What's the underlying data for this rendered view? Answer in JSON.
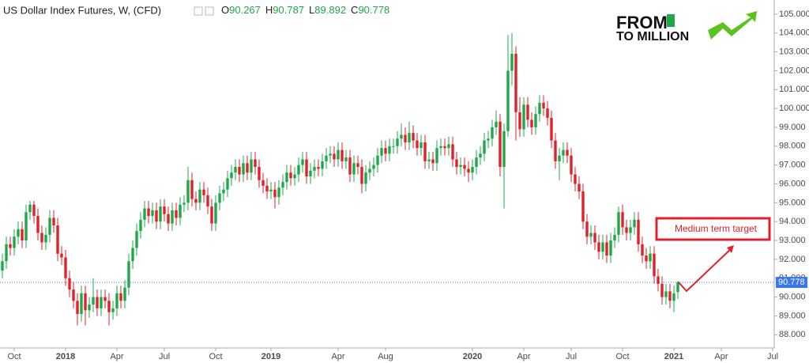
{
  "chart_data": {
    "type": "candlestick",
    "title": "US Dollar Index Futures, W, (CFD)",
    "ohlc_labels": [
      "O",
      "H",
      "L",
      "C"
    ],
    "annotation": "Medium term target",
    "logo_text": [
      "FROM",
      "TO MILLION"
    ],
    "up_color": "#1fa84a",
    "down_color": "#e0212b",
    "price_line_color": "#3a78e8",
    "ylim": [
      87.3,
      105.75
    ],
    "yticks": [
      {
        "value": 88,
        "label": "88.000"
      },
      {
        "value": 89,
        "label": "89.000"
      },
      {
        "value": 90,
        "label": "90.000"
      },
      {
        "value": 91,
        "label": "91.000"
      },
      {
        "value": 92,
        "label": "92.000"
      },
      {
        "value": 93,
        "label": "93.000"
      },
      {
        "value": 94,
        "label": "94.000"
      },
      {
        "value": 95,
        "label": "95.000"
      },
      {
        "value": 96,
        "label": "96.000"
      },
      {
        "value": 97,
        "label": "97.000"
      },
      {
        "value": 98,
        "label": "98.000"
      },
      {
        "value": 99,
        "label": "99.000"
      },
      {
        "value": 100,
        "label": "100.000"
      },
      {
        "value": 101,
        "label": "101.000"
      },
      {
        "value": 102,
        "label": "102.000"
      },
      {
        "value": 103,
        "label": "103.000"
      },
      {
        "value": 104,
        "label": "104.000"
      },
      {
        "value": 105,
        "label": "105.000"
      }
    ],
    "categories": [
      null,
      null,
      null,
      "Oct",
      null,
      null,
      null,
      null,
      null,
      null,
      null,
      null,
      null,
      null,
      null,
      null,
      "2018",
      null,
      null,
      null,
      null,
      null,
      null,
      null,
      null,
      null,
      null,
      null,
      null,
      "Apr",
      null,
      null,
      null,
      null,
      null,
      null,
      null,
      null,
      null,
      null,
      null,
      "Jul",
      null,
      null,
      null,
      null,
      null,
      null,
      null,
      null,
      null,
      null,
      null,
      null,
      "Oct",
      null,
      null,
      null,
      null,
      null,
      null,
      null,
      null,
      null,
      null,
      null,
      null,
      null,
      "2019",
      null,
      null,
      null,
      null,
      null,
      null,
      null,
      null,
      null,
      null,
      null,
      null,
      null,
      null,
      null,
      null,
      "Apr",
      null,
      null,
      null,
      null,
      null,
      null,
      null,
      null,
      null,
      null,
      null,
      "Aug",
      null,
      null,
      null,
      null,
      null,
      null,
      null,
      null,
      null,
      null,
      null,
      null,
      null,
      null,
      null,
      null,
      null,
      null,
      null,
      null,
      null,
      "2020",
      null,
      null,
      null,
      null,
      null,
      null,
      null,
      null,
      null,
      null,
      null,
      null,
      "Apr",
      null,
      null,
      null,
      null,
      null,
      null,
      null,
      null,
      null,
      null,
      null,
      "Jul",
      null,
      null,
      null,
      null,
      null,
      null,
      null,
      null,
      null,
      null,
      null,
      null,
      "Oct",
      null,
      null,
      null,
      null,
      null,
      null,
      null,
      null,
      null,
      null,
      null,
      null,
      "2021",
      null,
      null,
      null,
      null,
      null,
      null,
      null,
      null,
      null,
      null,
      null,
      "Apr",
      null,
      null,
      null,
      null,
      null,
      null,
      null,
      null,
      null,
      null,
      null,
      null,
      "Jul"
    ],
    "open": [
      91.4,
      91.9,
      92.8,
      92.6,
      93.2,
      93.6,
      93.0,
      94.5,
      94.9,
      94.3,
      93.4,
      92.9,
      93.3,
      94.2,
      93.8,
      92.3,
      92.1,
      91.0,
      90.4,
      89.8,
      89.1,
      90.2,
      89.3,
      89.6,
      90.0,
      89.4,
      90.0,
      89.8,
      89.2,
      89.4,
      90.2,
      89.8,
      90.5,
      91.9,
      92.6,
      93.5,
      94.1,
      94.7,
      94.3,
      94.6,
      94.0,
      94.8,
      94.4,
      93.9,
      94.6,
      94.2,
      94.9,
      95.0,
      96.2,
      95.2,
      95.0,
      95.7,
      95.4,
      94.8,
      93.9,
      95.0,
      95.5,
      95.7,
      96.3,
      96.6,
      96.9,
      96.5,
      97.1,
      96.6,
      97.3,
      96.9,
      96.2,
      95.9,
      95.6,
      95.7,
      95.3,
      95.8,
      96.1,
      96.6,
      96.3,
      96.5,
      97.0,
      97.3,
      96.4,
      96.7,
      96.9,
      96.8,
      97.2,
      97.5,
      97.6,
      97.3,
      97.8,
      97.2,
      97.4,
      96.5,
      97.1,
      96.9,
      96.0,
      96.6,
      96.8,
      97.0,
      97.5,
      97.9,
      97.6,
      98.0,
      98.0,
      98.4,
      98.6,
      98.2,
      98.7,
      98.3,
      97.9,
      98.2,
      97.2,
      97.3,
      97.1,
      97.9,
      98.0,
      97.9,
      98.1,
      97.3,
      96.9,
      97.0,
      96.8,
      96.6,
      96.9,
      97.4,
      97.6,
      98.3,
      98.4,
      99.0,
      99.3,
      96.9,
      98.8,
      102.0,
      102.9,
      99.8,
      98.9,
      100.2,
      99.4,
      99.0,
      99.7,
      100.3,
      100.0,
      99.5,
      98.3,
      97.2,
      97.5,
      97.8,
      97.5,
      96.5,
      96.0,
      95.6,
      94.0,
      93.2,
      93.4,
      92.9,
      92.4,
      92.9,
      92.2,
      93.0,
      93.3,
      94.5,
      93.7,
      93.4,
      93.7,
      94.1,
      92.8,
      92.2,
      91.9,
      92.3,
      91.1,
      90.7,
      90.0,
      90.3,
      89.8,
      90.267,
      null,
      null,
      null,
      null,
      null,
      null,
      null,
      null,
      null,
      null,
      null,
      null,
      null,
      null,
      null,
      null,
      null,
      null,
      null,
      null,
      null,
      null,
      null,
      null
    ],
    "high": [
      92.3,
      93.2,
      93.2,
      93.6,
      94.0,
      94.0,
      94.9,
      95.1,
      95.1,
      94.7,
      93.8,
      93.7,
      94.6,
      94.6,
      94.2,
      92.7,
      92.5,
      91.4,
      90.8,
      90.2,
      90.6,
      90.6,
      90.0,
      91.0,
      90.4,
      90.4,
      90.4,
      90.2,
      89.8,
      90.6,
      90.6,
      90.9,
      92.3,
      93.0,
      93.9,
      94.5,
      95.1,
      95.1,
      95.0,
      95.0,
      95.2,
      95.2,
      94.8,
      95.0,
      95.0,
      95.3,
      95.4,
      96.9,
      96.6,
      95.6,
      96.1,
      96.1,
      95.8,
      95.2,
      95.4,
      95.9,
      96.1,
      96.7,
      97.0,
      97.3,
      97.3,
      97.5,
      97.5,
      97.7,
      97.7,
      97.3,
      96.6,
      96.3,
      96.1,
      96.1,
      96.2,
      96.5,
      97.0,
      97.0,
      96.9,
      97.4,
      97.7,
      97.7,
      97.1,
      97.3,
      97.3,
      97.6,
      97.9,
      98.0,
      98.0,
      98.2,
      98.2,
      97.8,
      97.8,
      97.5,
      97.5,
      97.3,
      97.0,
      97.2,
      97.4,
      97.9,
      98.3,
      98.3,
      98.4,
      98.4,
      98.8,
      99.2,
      99.0,
      99.3,
      99.1,
      98.7,
      98.6,
      98.6,
      97.7,
      97.7,
      98.3,
      98.4,
      98.4,
      98.5,
      98.5,
      97.7,
      97.4,
      97.4,
      97.2,
      97.3,
      97.8,
      98.0,
      98.7,
      98.8,
      99.4,
      99.9,
      99.7,
      99.2,
      103.9,
      104.0,
      103.3,
      100.6,
      100.6,
      100.6,
      99.8,
      100.1,
      100.7,
      100.7,
      100.4,
      99.9,
      98.7,
      97.9,
      98.2,
      98.2,
      97.9,
      96.9,
      96.4,
      96.0,
      94.4,
      93.8,
      93.8,
      93.3,
      93.3,
      93.3,
      93.4,
      93.7,
      94.8,
      94.9,
      94.1,
      94.1,
      94.5,
      94.5,
      93.2,
      92.6,
      92.7,
      92.7,
      91.5,
      91.1,
      90.7,
      90.7,
      90.6,
      90.787,
      null,
      null,
      null,
      null,
      null,
      null,
      null,
      null,
      null,
      null,
      null,
      null,
      null,
      null,
      null,
      null,
      null,
      null,
      null,
      null,
      null,
      null,
      null,
      null
    ],
    "low": [
      91.0,
      91.5,
      92.2,
      92.2,
      92.8,
      92.6,
      92.6,
      94.1,
      93.9,
      93.0,
      92.5,
      92.5,
      92.9,
      93.4,
      91.9,
      91.7,
      90.6,
      90.0,
      89.4,
      88.5,
      88.7,
      88.5,
      88.9,
      89.2,
      89.0,
      89.0,
      89.4,
      88.5,
      88.8,
      89.0,
      89.4,
      89.4,
      90.1,
      91.5,
      92.2,
      93.1,
      93.7,
      93.9,
      93.9,
      93.6,
      93.6,
      94.0,
      93.5,
      93.5,
      93.8,
      93.8,
      94.5,
      94.6,
      94.8,
      94.6,
      94.6,
      95.0,
      94.4,
      93.5,
      93.5,
      94.6,
      95.1,
      95.3,
      95.9,
      96.2,
      96.1,
      96.1,
      96.2,
      96.2,
      96.5,
      95.8,
      95.5,
      95.2,
      95.2,
      94.7,
      94.9,
      95.4,
      95.7,
      95.9,
      95.9,
      96.1,
      96.6,
      96.0,
      96.0,
      96.3,
      96.4,
      96.4,
      96.8,
      97.1,
      96.9,
      96.9,
      96.8,
      96.8,
      96.1,
      96.1,
      96.5,
      95.5,
      95.6,
      96.2,
      96.4,
      96.6,
      97.1,
      97.2,
      97.2,
      97.6,
      97.6,
      98.0,
      97.8,
      97.8,
      97.9,
      97.5,
      97.5,
      96.8,
      96.8,
      96.7,
      96.7,
      97.5,
      97.5,
      97.5,
      96.9,
      96.5,
      96.5,
      96.4,
      96.1,
      96.2,
      96.5,
      97.0,
      97.2,
      97.9,
      98.0,
      98.6,
      96.4,
      94.7,
      98.5,
      101.2,
      98.3,
      98.5,
      98.5,
      99.0,
      98.6,
      98.6,
      99.3,
      99.6,
      99.1,
      97.9,
      96.8,
      96.2,
      97.1,
      97.1,
      96.1,
      95.6,
      95.2,
      93.6,
      92.8,
      92.8,
      92.5,
      92.0,
      92.0,
      91.8,
      91.8,
      92.6,
      92.9,
      93.3,
      93.0,
      93.0,
      93.3,
      92.4,
      91.8,
      91.5,
      91.5,
      90.7,
      90.3,
      89.6,
      89.6,
      89.4,
      89.2,
      89.892,
      null,
      null,
      null,
      null,
      null,
      null,
      null,
      null,
      null,
      null,
      null,
      null,
      null,
      null,
      null,
      null,
      null,
      null,
      null,
      null,
      null,
      null,
      null,
      null
    ],
    "close": [
      91.9,
      92.8,
      92.6,
      93.2,
      93.6,
      93.0,
      94.5,
      94.9,
      94.3,
      93.4,
      92.9,
      93.3,
      94.2,
      93.8,
      92.3,
      92.1,
      91.0,
      90.4,
      89.8,
      89.1,
      90.2,
      89.3,
      89.6,
      90.0,
      89.4,
      90.0,
      89.8,
      89.2,
      89.4,
      90.2,
      89.8,
      90.5,
      91.9,
      92.6,
      93.5,
      94.1,
      94.7,
      94.3,
      94.6,
      94.0,
      94.8,
      94.4,
      93.9,
      94.6,
      94.2,
      94.9,
      95.0,
      96.2,
      95.2,
      95.0,
      95.7,
      95.4,
      94.8,
      93.9,
      95.0,
      95.5,
      95.7,
      96.3,
      96.6,
      96.9,
      96.5,
      97.1,
      96.6,
      97.3,
      96.9,
      96.2,
      95.9,
      95.6,
      95.7,
      95.3,
      95.8,
      96.1,
      96.6,
      96.3,
      96.5,
      97.0,
      97.3,
      96.4,
      96.7,
      96.9,
      96.8,
      97.2,
      97.5,
      97.6,
      97.3,
      97.8,
      97.2,
      97.4,
      96.5,
      97.1,
      96.9,
      96.0,
      96.6,
      96.8,
      97.0,
      97.5,
      97.9,
      97.6,
      98.0,
      98.0,
      98.4,
      98.6,
      98.2,
      98.7,
      98.3,
      97.9,
      98.2,
      97.2,
      97.3,
      97.1,
      97.9,
      98.0,
      97.9,
      98.1,
      97.3,
      96.9,
      97.0,
      96.8,
      96.6,
      96.9,
      97.4,
      97.6,
      98.3,
      98.4,
      99.0,
      99.3,
      96.9,
      98.8,
      102.0,
      102.9,
      99.8,
      98.9,
      100.2,
      99.4,
      99.0,
      99.7,
      100.3,
      100.0,
      99.5,
      98.3,
      97.2,
      97.5,
      97.8,
      97.5,
      96.5,
      96.0,
      95.6,
      94.0,
      93.2,
      93.4,
      92.9,
      92.4,
      92.9,
      92.2,
      93.0,
      93.3,
      94.5,
      93.7,
      93.4,
      93.7,
      94.1,
      92.8,
      92.2,
      91.9,
      92.3,
      91.1,
      90.7,
      90.0,
      90.3,
      89.8,
      90.2,
      90.778,
      null,
      null,
      null,
      null,
      null,
      null,
      null,
      null,
      null,
      null,
      null,
      null,
      null,
      null,
      null,
      null,
      null,
      null,
      null,
      null,
      null,
      null,
      null,
      null
    ]
  }
}
